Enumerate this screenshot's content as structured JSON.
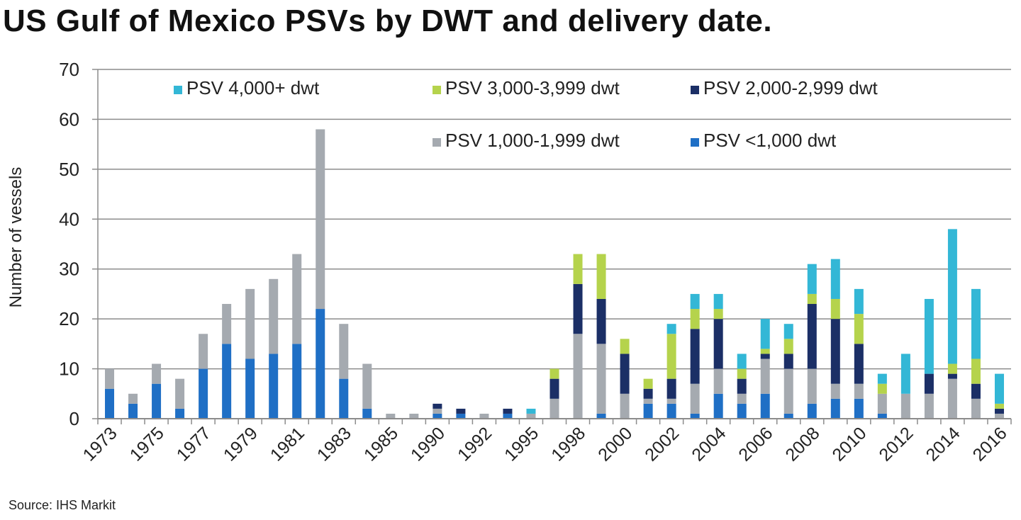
{
  "title": "US Gulf of Mexico PSVs by DWT and delivery date.",
  "source": "Source: IHS Markit",
  "chart_data": {
    "type": "bar",
    "stacked": true,
    "ylabel": "Number of vessels",
    "xlabel": "",
    "ylim": [
      0,
      70
    ],
    "yticks": [
      0,
      10,
      20,
      30,
      40,
      50,
      60,
      70
    ],
    "grid": true,
    "legend_position": "top",
    "categories": [
      "1973",
      "1974",
      "1975",
      "1976",
      "1977",
      "1978",
      "1979",
      "1980",
      "1981",
      "1982",
      "1983",
      "1984",
      "1985",
      "1986",
      "1990",
      "1991",
      "1992",
      "1994",
      "1995",
      "1997",
      "1998",
      "1999",
      "2000",
      "2001",
      "2002",
      "2003",
      "2004",
      "2005",
      "2006",
      "2007",
      "2008",
      "2009",
      "2010",
      "2011",
      "2012",
      "2013",
      "2014",
      "2015",
      "2016"
    ],
    "tick_labels": [
      "1973",
      "",
      "1975",
      "",
      "1977",
      "",
      "1979",
      "",
      "1981",
      "",
      "1983",
      "",
      "1985",
      "",
      "1990",
      "",
      "1992",
      "",
      "1995",
      "",
      "1998",
      "",
      "2000",
      "",
      "2002",
      "",
      "2004",
      "",
      "2006",
      "",
      "2008",
      "",
      "2010",
      "",
      "2012",
      "",
      "2014",
      "",
      "2016"
    ],
    "series": [
      {
        "name": "PSV <1,000 dwt",
        "color": "#1f6fc5",
        "values": [
          6,
          3,
          7,
          2,
          10,
          15,
          12,
          13,
          15,
          22,
          8,
          2,
          0,
          0,
          1,
          1,
          0,
          1,
          0,
          0,
          0,
          1,
          0,
          3,
          3,
          1,
          5,
          3,
          5,
          1,
          3,
          4,
          4,
          1,
          0,
          0,
          0,
          0,
          0
        ]
      },
      {
        "name": "PSV 1,000-1,999 dwt",
        "color": "#a5aab0",
        "values": [
          4,
          2,
          4,
          6,
          7,
          8,
          14,
          15,
          18,
          36,
          11,
          9,
          1,
          1,
          1,
          0,
          1,
          0,
          1,
          4,
          17,
          14,
          5,
          1,
          1,
          6,
          5,
          2,
          7,
          9,
          7,
          3,
          3,
          4,
          5,
          5,
          8,
          4,
          1
        ]
      },
      {
        "name": "PSV 2,000-2,999 dwt",
        "color": "#1b2f66",
        "values": [
          0,
          0,
          0,
          0,
          0,
          0,
          0,
          0,
          0,
          0,
          0,
          0,
          0,
          0,
          1,
          1,
          0,
          1,
          0,
          4,
          10,
          9,
          8,
          2,
          4,
          11,
          10,
          3,
          1,
          3,
          13,
          13,
          8,
          0,
          0,
          4,
          1,
          3,
          1
        ]
      },
      {
        "name": "PSV 3,000-3,999 dwt",
        "color": "#b5d34c",
        "values": [
          0,
          0,
          0,
          0,
          0,
          0,
          0,
          0,
          0,
          0,
          0,
          0,
          0,
          0,
          0,
          0,
          0,
          0,
          0,
          2,
          6,
          9,
          3,
          2,
          9,
          4,
          2,
          2,
          1,
          3,
          2,
          4,
          6,
          2,
          0,
          0,
          2,
          5,
          1
        ]
      },
      {
        "name": "PSV 4,000+ dwt",
        "color": "#33b7d6",
        "values": [
          0,
          0,
          0,
          0,
          0,
          0,
          0,
          0,
          0,
          0,
          0,
          0,
          0,
          0,
          0,
          0,
          0,
          0,
          1,
          0,
          0,
          0,
          0,
          0,
          2,
          3,
          3,
          3,
          6,
          3,
          6,
          8,
          5,
          2,
          8,
          15,
          27,
          14,
          6
        ]
      }
    ],
    "legend_order": [
      "PSV 4,000+ dwt",
      "PSV 3,000-3,999 dwt",
      "PSV 2,000-2,999 dwt",
      "PSV 1,000-1,999 dwt",
      "PSV <1,000 dwt"
    ]
  }
}
